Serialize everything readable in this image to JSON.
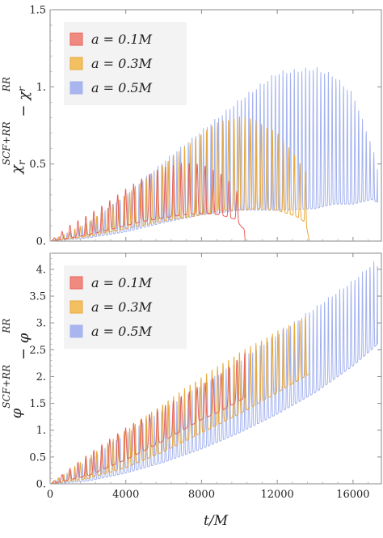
{
  "chart_data": [
    {
      "type": "line",
      "ylabel": "χ_r^{SCF+RR} − χ_r^{RR}",
      "ylabel_parts": [
        "χ",
        "r",
        "SCF+RR",
        " − χ",
        "r",
        "RR"
      ],
      "xlim": [
        0,
        17500
      ],
      "ylim": [
        0,
        1.5
      ],
      "yticks": [
        {
          "value": 0,
          "label": "0."
        },
        {
          "value": 0.5,
          "label": "0.5"
        },
        {
          "value": 1.0,
          "label": "1."
        },
        {
          "value": 1.5,
          "label": "1.5"
        }
      ],
      "xticks": [
        0,
        4000,
        8000,
        12000,
        16000
      ],
      "legend_position": "top-left",
      "series": [
        {
          "name": "a = 0.1M",
          "legend": {
            "lhs": "a",
            "rhs": "0.1M"
          },
          "color": "#e8625a",
          "fill": "#f08a80",
          "envelope": {
            "t": [
              0,
              1000,
              2000,
              3000,
              4000,
              5000,
              6000,
              7000,
              8000,
              9000,
              9800,
              10200,
              10300
            ],
            "lower": [
              0.0,
              0.02,
              0.04,
              0.07,
              0.1,
              0.13,
              0.15,
              0.17,
              0.18,
              0.17,
              0.14,
              0.08,
              0.0
            ],
            "upper": [
              0.0,
              0.1,
              0.17,
              0.25,
              0.34,
              0.42,
              0.48,
              0.51,
              0.5,
              0.44,
              0.35,
              0.2,
              0.0
            ]
          },
          "period": 420
        },
        {
          "name": "a = 0.3M",
          "legend": {
            "lhs": "a",
            "rhs": "0.3M"
          },
          "color": "#e8a83a",
          "fill": "#f2c060",
          "envelope": {
            "t": [
              0,
              2000,
              4000,
              6000,
              8000,
              9000,
              10000,
              11000,
              12000,
              13000,
              13500,
              13700
            ],
            "lower": [
              0.0,
              0.03,
              0.08,
              0.13,
              0.17,
              0.2,
              0.2,
              0.21,
              0.2,
              0.16,
              0.12,
              0.0
            ],
            "upper": [
              0.0,
              0.12,
              0.3,
              0.5,
              0.7,
              0.78,
              0.81,
              0.78,
              0.7,
              0.55,
              0.45,
              0.0
            ]
          },
          "period": 290
        },
        {
          "name": "a = 0.5M",
          "legend": {
            "lhs": "a",
            "rhs": "0.5M"
          },
          "color": "#a3b2ee",
          "fill": "#a9b5ee",
          "envelope": {
            "t": [
              0,
              2000,
              4000,
              6000,
              8000,
              10000,
              12000,
              14000,
              15000,
              16000,
              17000,
              17300
            ],
            "lower": [
              0.0,
              0.02,
              0.06,
              0.12,
              0.17,
              0.2,
              0.2,
              0.21,
              0.24,
              0.24,
              0.27,
              0.25
            ],
            "upper": [
              0.0,
              0.12,
              0.3,
              0.52,
              0.72,
              0.92,
              1.1,
              1.13,
              1.08,
              0.96,
              0.62,
              0.48
            ]
          },
          "period": 200
        }
      ]
    },
    {
      "type": "line",
      "ylabel": "φ^{SCF+RR} − φ^{RR}",
      "ylabel_parts": [
        "φ",
        "",
        "SCF+RR",
        " − φ",
        "",
        "RR"
      ],
      "xlabel": "t/M",
      "xlim": [
        0,
        17500
      ],
      "ylim": [
        0,
        4.3
      ],
      "yticks": [
        {
          "value": 0,
          "label": "0."
        },
        {
          "value": 0.5,
          "label": "0.5"
        },
        {
          "value": 1.0,
          "label": "1."
        },
        {
          "value": 1.5,
          "label": "1.5"
        },
        {
          "value": 2.0,
          "label": "2."
        },
        {
          "value": 2.5,
          "label": "2.5"
        },
        {
          "value": 3.0,
          "label": "3."
        },
        {
          "value": 3.5,
          "label": "3.5"
        },
        {
          "value": 4.0,
          "label": "4."
        }
      ],
      "xticks": [
        0,
        4000,
        8000,
        12000,
        16000
      ],
      "legend_position": "top-left",
      "series": [
        {
          "name": "a = 0.1M",
          "legend": {
            "lhs": "a",
            "rhs": "0.1M"
          },
          "color": "#e8625a",
          "fill": "#f08a80",
          "envelope": {
            "t": [
              0,
              2000,
              4000,
              6000,
              8000,
              9000,
              10000,
              10300
            ],
            "lower": [
              0.0,
              0.15,
              0.45,
              0.8,
              1.2,
              1.35,
              1.55,
              1.6
            ],
            "upper": [
              0.0,
              0.55,
              1.05,
              1.45,
              1.85,
              2.05,
              2.35,
              2.45
            ]
          },
          "period": 420
        },
        {
          "name": "a = 0.3M",
          "legend": {
            "lhs": "a",
            "rhs": "0.3M"
          },
          "color": "#e8a83a",
          "fill": "#f2c060",
          "envelope": {
            "t": [
              0,
              2000,
              4000,
              6000,
              8000,
              10000,
              12000,
              13700
            ],
            "lower": [
              0.0,
              0.1,
              0.3,
              0.6,
              0.95,
              1.3,
              1.7,
              2.05
            ],
            "upper": [
              0.0,
              0.5,
              1.0,
              1.5,
              2.0,
              2.45,
              2.85,
              3.15
            ]
          },
          "period": 290
        },
        {
          "name": "a = 0.5M",
          "legend": {
            "lhs": "a",
            "rhs": "0.5M"
          },
          "color": "#a3b2ee",
          "fill": "#a9b5ee",
          "envelope": {
            "t": [
              0,
              2000,
              4000,
              6000,
              8000,
              10000,
              12000,
              14000,
              16000,
              17300
            ],
            "lower": [
              0.0,
              0.05,
              0.2,
              0.4,
              0.65,
              0.95,
              1.3,
              1.7,
              2.2,
              2.6
            ],
            "upper": [
              0.0,
              0.45,
              0.95,
              1.4,
              1.85,
              2.3,
              2.8,
              3.3,
              3.8,
              4.2
            ]
          },
          "period": 200
        }
      ]
    }
  ]
}
